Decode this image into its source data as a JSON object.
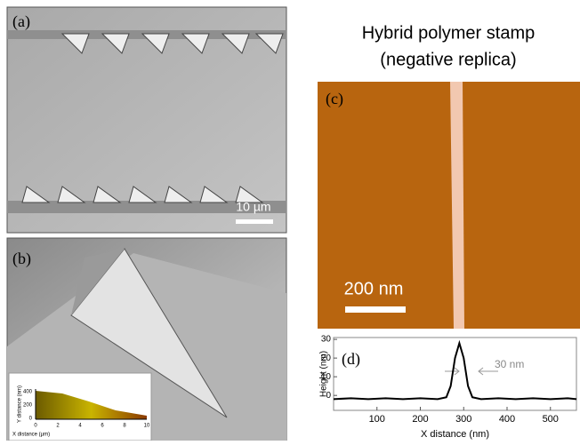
{
  "figure": {
    "title_line1": "Hybrid polymer stamp",
    "title_line2": "(negative replica)",
    "panel_a": "(a)",
    "panel_b": "(b)",
    "panel_c": "(c)",
    "scale_bar_a": "10 µm",
    "scale_bar_c": "200 nm",
    "inset_b": {
      "y_label": "Y distance (nm)",
      "x_label": "X distance (µm)",
      "yticks": [
        "0",
        "200",
        "400"
      ],
      "xticks": [
        "0",
        "2",
        "4",
        "6",
        "8",
        "10"
      ]
    }
  },
  "chart_data": {
    "type": "line",
    "panel_label": "(d)",
    "annotation": "30 nm",
    "x_label": "X distance (nm)",
    "y_label": "Height (nm)",
    "x": [
      0,
      40,
      80,
      120,
      160,
      200,
      240,
      260,
      270,
      280,
      290,
      300,
      310,
      320,
      340,
      380,
      420,
      460,
      500,
      540,
      560
    ],
    "series": [
      {
        "color": "#000000",
        "values": [
          -2,
          -1.5,
          -2,
          -1.5,
          -2,
          -1.5,
          -2,
          -1,
          5,
          20,
          28,
          20,
          5,
          -1,
          -2,
          -1.5,
          -2,
          -1.5,
          -2,
          -1.5,
          -2
        ]
      }
    ],
    "xlim": [
      0,
      560
    ],
    "ylim": [
      -8,
      31
    ],
    "xticks": [
      100,
      200,
      300,
      400,
      500
    ],
    "yticks": [
      0,
      10,
      20,
      30
    ]
  }
}
